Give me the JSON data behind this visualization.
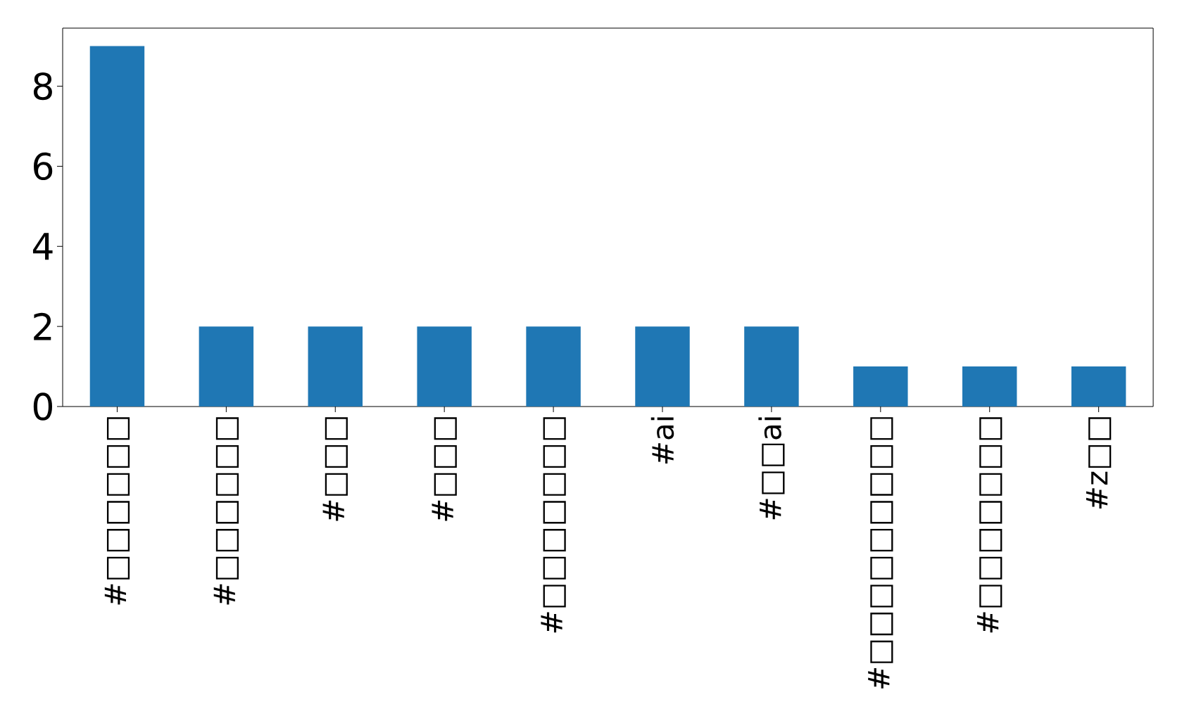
{
  "chart_data": {
    "type": "bar",
    "categories": [
      "#□□□□□□",
      "#□□□□□□",
      "#□□□",
      "#□□□",
      "#□□□□□□□",
      "#ai",
      "#□□ai",
      "#□□□□□□□□□",
      "#□□□□□□□",
      "#z□□"
    ],
    "values": [
      9,
      2,
      2,
      2,
      2,
      2,
      2,
      1,
      1,
      1
    ],
    "color": "#1f77b4",
    "ylim": [
      0,
      9.45
    ],
    "yticks": [
      0,
      2,
      4,
      6,
      8
    ]
  }
}
